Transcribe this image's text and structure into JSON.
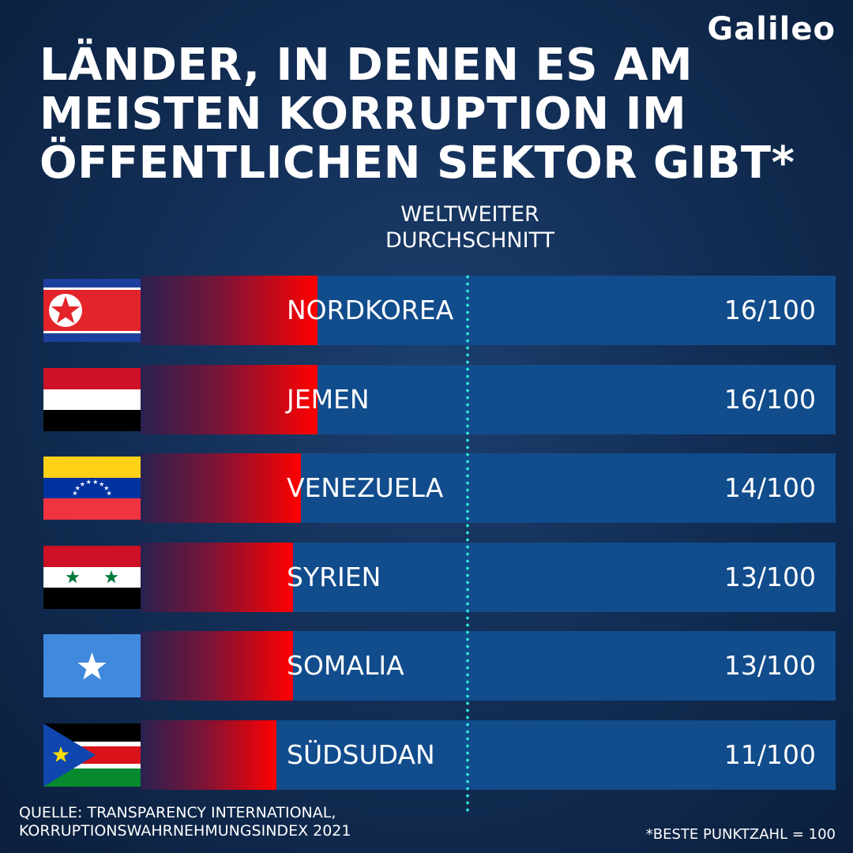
{
  "brand": {
    "logo_text": "Galileo"
  },
  "title_lines": [
    "LÄNDER, IN DENEN ES AM",
    "MEISTEN KORRUPTION IM",
    "ÖFFENTLICHEN SEKTOR GIBT*"
  ],
  "average_label_lines": [
    "WELTWEITER",
    "DURCHSCHNITT"
  ],
  "source_lines": [
    "QUELLE: TRANSPARENCY INTERNATIONAL,",
    "KORRUPTIONSWAHRNEHMUNGSINDEX 2021"
  ],
  "footnote": "*BESTE PUNKTZAHL = 100",
  "colors": {
    "background": "#132f57",
    "row": "#114c8c",
    "bar_end": "#ff0000",
    "average_line": "#2ee6d6"
  },
  "chart_data": {
    "type": "bar",
    "orientation": "horizontal",
    "categories": [
      "NORDKOREA",
      "JEMEN",
      "VENEZUELA",
      "SYRIEN",
      "SOMALIA",
      "SÜDSUDAN"
    ],
    "values": [
      16,
      16,
      14,
      13,
      13,
      11
    ],
    "max": 100,
    "value_labels": [
      "16/100",
      "16/100",
      "14/100",
      "13/100",
      "13/100",
      "11/100"
    ],
    "flags": [
      "north-korea-flag",
      "yemen-flag",
      "venezuela-flag",
      "syria-flag",
      "somalia-flag",
      "south-sudan-flag"
    ],
    "reference_line": {
      "label": "WELTWEITER DURCHSCHNITT"
    }
  }
}
